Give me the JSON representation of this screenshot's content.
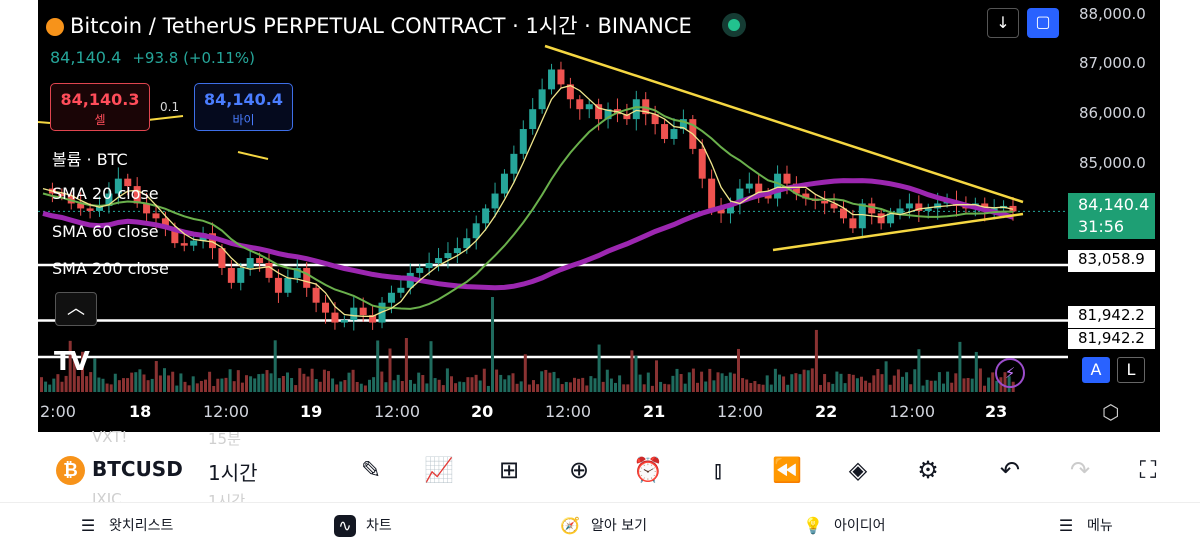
{
  "header": {
    "title": "Bitcoin / TetherUS PERPETUAL CONTRACT · 1시간 · BINANCE",
    "price": "84,140.4",
    "change": "+93.8 (+0.11%)"
  },
  "trade": {
    "sell_price": "84,140.3",
    "sell_label": "셀",
    "spread": "0.1",
    "buy_price": "84,140.4",
    "buy_label": "바이"
  },
  "indicators": {
    "volume": "볼륨 · BTC",
    "sma20": "SMA 20 close",
    "sma60": "SMA 60 close",
    "sma200": "SMA 200 close"
  },
  "y_axis": {
    "ticks": [
      "88,000.0",
      "87,000.0",
      "86,000.0",
      "85,000.0"
    ],
    "current_price": "84,140.4",
    "countdown": "31:56",
    "line_levels": [
      "83,058.9",
      "81,942.2",
      "81,942.2"
    ]
  },
  "x_axis": {
    "labels": [
      "2:00",
      "18",
      "12:00",
      "19",
      "12:00",
      "20",
      "12:00",
      "21",
      "12:00",
      "22",
      "12:00",
      "23"
    ]
  },
  "scale_buttons": {
    "auto": "A",
    "log": "L"
  },
  "toolbar": {
    "symbol": "BTCUSD",
    "interval": "1시간",
    "ghost_above_symbol": "VXT!",
    "ghost_above_interval": "15분",
    "ghost_below_symbol": "IXIC",
    "ghost_below_interval": "1시간",
    "tools": [
      "pencil-icon",
      "indicators-icon",
      "grid-icon",
      "plus-circle-icon",
      "alarm-icon",
      "candles-icon",
      "replay-icon",
      "layers-icon",
      "settings-sliders-icon",
      "undo-icon",
      "redo-icon",
      "fullscreen-icon"
    ]
  },
  "bottom_nav": {
    "watchlist": "왓치리스트",
    "chart": "차트",
    "explore": "알아 보기",
    "ideas": "아이디어",
    "menu": "메뉴"
  },
  "colors": {
    "up": "#26a69a",
    "down": "#ef5350",
    "sma20": "#f0e68c",
    "sma60": "#6ab04c",
    "sma200": "#9c27b0",
    "trendline": "#f5d742",
    "accent": "#2962ff"
  },
  "chart_data": {
    "type": "candlestick",
    "series_price": [
      84600,
      84500,
      84450,
      84300,
      84200,
      84150,
      84250,
      84500,
      84800,
      84650,
      84300,
      84100,
      84000,
      83800,
      83500,
      83450,
      83550,
      83700,
      83400,
      83000,
      82700,
      83000,
      83200,
      83100,
      82800,
      82500,
      82800,
      83000,
      82600,
      82300,
      82100,
      81900,
      81950,
      82200,
      82050,
      81900,
      82300,
      82500,
      82600,
      82900,
      83000,
      83100,
      83200,
      83300,
      83400,
      83600,
      83900,
      84200,
      84500,
      84900,
      85300,
      85800,
      86200,
      86600,
      87000,
      86700,
      86400,
      86200,
      86300,
      86000,
      86200,
      86100,
      86000,
      86400,
      86100,
      85900,
      85600,
      85800,
      86000,
      85400,
      84800,
      84200,
      84100,
      84300,
      84600,
      84700,
      84500,
      84400,
      84900,
      84700,
      84500,
      84400,
      84350,
      84300,
      84200,
      84000,
      83800,
      84300,
      84100,
      83900,
      84100,
      84200,
      84300,
      84150,
      84200,
      84300,
      84350,
      84250,
      84200,
      84300,
      84150,
      84200,
      84250,
      84140
    ],
    "price_axis": {
      "min": 80500,
      "max": 88300
    },
    "levels": [
      83058.9,
      81942.2
    ]
  }
}
